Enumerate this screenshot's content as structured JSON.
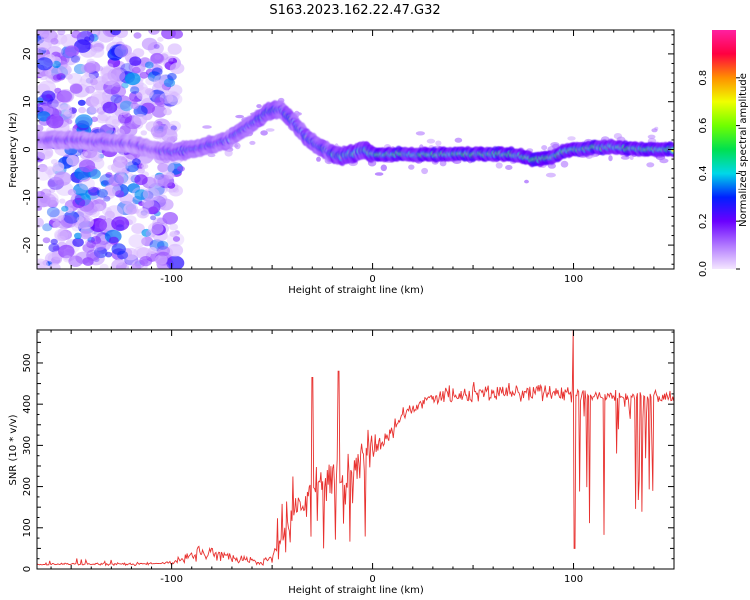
{
  "title": "S163.2023.162.22.47.G32",
  "colors": {
    "snr_line": "#e8312f",
    "frame": "#000000"
  },
  "colorbar": {
    "label": "Normalized spectral amplitude",
    "ticks": [
      "0.0",
      "0.2",
      "0.4",
      "0.6",
      "0.8"
    ],
    "tick_values": [
      0,
      0.2,
      0.4,
      0.6,
      0.8
    ],
    "range": [
      0,
      1
    ],
    "colors": [
      "#f4e6ff",
      "#b077ff",
      "#6a00ff",
      "#0020ff",
      "#00d8e8",
      "#00e050",
      "#70ff00",
      "#f0ff00",
      "#ff9000",
      "#ff0040",
      "#ff20a0"
    ]
  },
  "chart_data": [
    {
      "type": "heatmap",
      "name": "spectrogram",
      "xlabel": "Height of straight line (km)",
      "ylabel": "Frequency (Hz)",
      "xlim": [
        -167,
        150
      ],
      "ylim": [
        -25,
        25
      ],
      "x_ticks": [
        -100,
        0,
        100
      ],
      "x_tick_labels": [
        "-100",
        "0",
        "100"
      ],
      "y_ticks": [
        -20,
        -10,
        0,
        10,
        20
      ],
      "y_tick_labels": [
        "-20",
        "-10",
        "0",
        "10",
        "20"
      ],
      "ridge": {
        "x": [
          -165,
          -150,
          -130,
          -118,
          -110,
          -100,
          -90,
          -80,
          -72,
          -65,
          -58,
          -52,
          -46,
          -40,
          -34,
          -28,
          -22,
          -16,
          -10,
          -5,
          0,
          20,
          50,
          60,
          70,
          75,
          80,
          85,
          90,
          95,
          100,
          105,
          110,
          120,
          130,
          140,
          148
        ],
        "freq": [
          2,
          2,
          1.5,
          1,
          0,
          -0.5,
          0,
          1,
          2,
          4,
          6,
          8,
          8.5,
          6,
          3,
          1,
          -0.5,
          -1.5,
          -1,
          0,
          -1,
          -1,
          -1,
          -1,
          -1,
          -1.5,
          -2,
          -2,
          -1.5,
          -0.5,
          0,
          0,
          0.5,
          0.5,
          0,
          0,
          0
        ]
      },
      "noise_region_x": [
        -167,
        -105
      ]
    },
    {
      "type": "line",
      "name": "snr",
      "xlabel": "Height of straight line (km)",
      "ylabel": "SNR (10 * v/v)",
      "xlim": [
        -167,
        150
      ],
      "ylim": [
        0,
        580
      ],
      "x_ticks": [
        -100,
        0,
        100
      ],
      "x_tick_labels": [
        "-100",
        "0",
        "100"
      ],
      "y_ticks": [
        0,
        100,
        200,
        300,
        400,
        500
      ],
      "y_tick_labels": [
        "0",
        "100",
        "200",
        "300",
        "400",
        "500"
      ],
      "envelope": {
        "x": [
          -167,
          -120,
          -100,
          -90,
          -80,
          -70,
          -60,
          -55,
          -50,
          -45,
          -40,
          -35,
          -30,
          -25,
          -20,
          -15,
          -10,
          -5,
          0,
          5,
          10,
          15,
          20,
          25,
          30,
          40,
          50,
          60,
          70,
          80,
          90,
          100,
          110,
          120,
          130,
          140,
          150
        ],
        "y": [
          12,
          12,
          15,
          35,
          40,
          30,
          20,
          15,
          30,
          80,
          130,
          160,
          190,
          210,
          230,
          240,
          250,
          265,
          280,
          305,
          340,
          370,
          390,
          405,
          415,
          420,
          425,
          428,
          430,
          430,
          430,
          425,
          420,
          418,
          418,
          418,
          420
        ]
      },
      "spikes": [
        {
          "x": -30,
          "y": 465
        },
        {
          "x": -17,
          "y": 480
        },
        {
          "x": 100,
          "y": 580
        },
        {
          "x": 100.5,
          "y": 50
        }
      ]
    }
  ]
}
